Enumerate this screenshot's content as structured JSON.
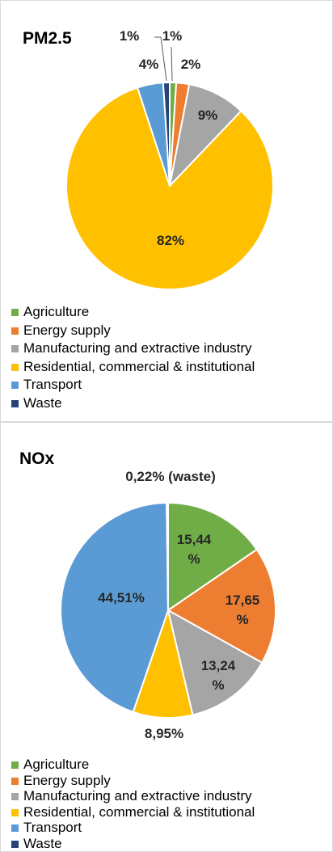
{
  "chart_data": [
    {
      "type": "pie",
      "title": "PM2.5",
      "categories": [
        "Agriculture",
        "Energy supply",
        "Manufacturing and extractive industry",
        "Residential, commercial & institutional",
        "Transport",
        "Waste"
      ],
      "values": [
        1,
        2,
        9,
        82,
        4,
        1
      ],
      "value_labels": [
        "1%",
        "2%",
        "9%",
        "82%",
        "4%",
        "1%"
      ],
      "colors": [
        "#70ad47",
        "#ed7d31",
        "#a5a5a5",
        "#ffc000",
        "#5b9bd5",
        "#264478"
      ]
    },
    {
      "type": "pie",
      "title": "NOx",
      "categories": [
        "Agriculture",
        "Energy supply",
        "Manufacturing and extractive industry",
        "Residential, commercial & institutional",
        "Transport",
        "Waste"
      ],
      "values": [
        15.44,
        17.65,
        13.24,
        8.95,
        44.51,
        0.22
      ],
      "value_labels": [
        "15,44 %",
        "17,65 %",
        "13,24 %",
        "8,95%",
        "44,51%",
        "0,22% (waste)"
      ],
      "colors": [
        "#70ad47",
        "#ed7d31",
        "#a5a5a5",
        "#ffc000",
        "#5b9bd5",
        "#264478"
      ]
    }
  ]
}
